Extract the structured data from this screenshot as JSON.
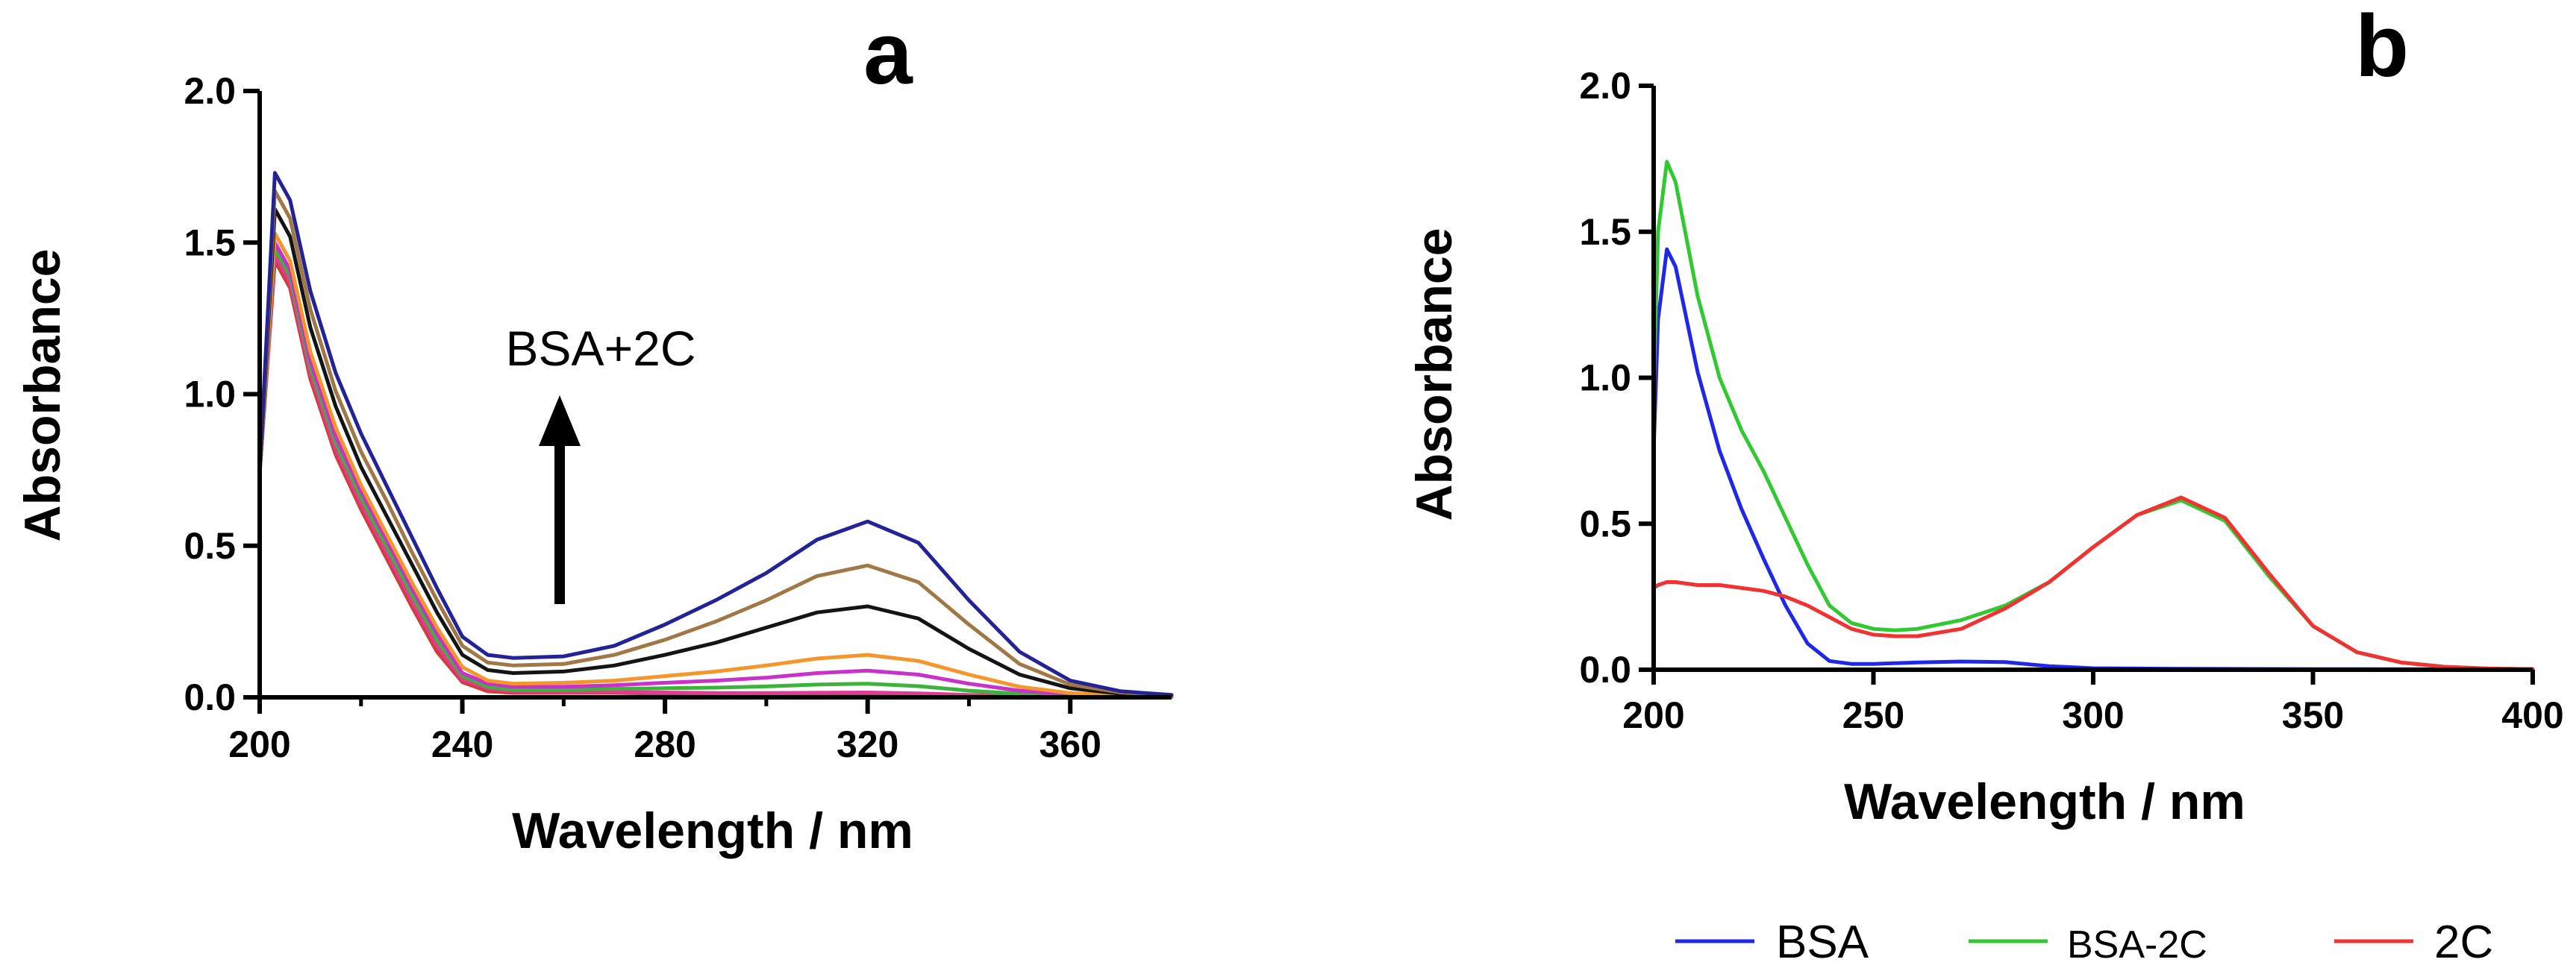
{
  "chart_data": [
    {
      "panel": "a",
      "type": "line",
      "xlabel": "Wavelength / nm",
      "ylabel": "Absorbance",
      "xlim": [
        200,
        380
      ],
      "ylim": [
        0,
        2.0
      ],
      "xticks": [
        200,
        240,
        280,
        320,
        360
      ],
      "yticks": [
        0.0,
        0.5,
        1.0,
        1.5,
        2.0
      ],
      "ytick_labels": [
        "0.0",
        "0.5",
        "1.0",
        "1.5",
        "2.0"
      ],
      "annotation": "BSA+2C",
      "annotation_arrow": "up",
      "grid": false,
      "series": [
        {
          "color": "#d43c3c",
          "x": [
            200,
            203,
            206,
            210,
            215,
            220,
            225,
            230,
            235,
            240,
            245,
            250,
            260,
            270,
            280,
            290,
            300,
            310,
            320,
            330,
            340,
            350,
            360,
            370,
            380
          ],
          "y": [
            0.74,
            1.44,
            1.35,
            1.05,
            0.8,
            0.62,
            0.46,
            0.3,
            0.15,
            0.05,
            0.02,
            0.015,
            0.015,
            0.015,
            0.012,
            0.01,
            0.01,
            0.01,
            0.01,
            0.008,
            0.005,
            0.004,
            0.003,
            0.002,
            0.001
          ]
        },
        {
          "color": "#e03c96",
          "x": [
            200,
            203,
            206,
            210,
            215,
            220,
            225,
            230,
            235,
            240,
            245,
            250,
            260,
            270,
            280,
            290,
            300,
            310,
            320,
            330,
            340,
            350,
            360,
            370,
            380
          ],
          "y": [
            0.74,
            1.46,
            1.37,
            1.07,
            0.82,
            0.64,
            0.48,
            0.32,
            0.17,
            0.06,
            0.03,
            0.02,
            0.018,
            0.018,
            0.016,
            0.014,
            0.014,
            0.015,
            0.016,
            0.013,
            0.008,
            0.006,
            0.004,
            0.003,
            0.002
          ]
        },
        {
          "color": "#3cb43c",
          "x": [
            200,
            203,
            206,
            210,
            215,
            220,
            225,
            230,
            235,
            240,
            245,
            250,
            260,
            270,
            280,
            290,
            300,
            310,
            320,
            330,
            340,
            350,
            360,
            370,
            380
          ],
          "y": [
            0.74,
            1.48,
            1.39,
            1.09,
            0.84,
            0.66,
            0.5,
            0.34,
            0.19,
            0.07,
            0.035,
            0.025,
            0.025,
            0.028,
            0.03,
            0.032,
            0.036,
            0.042,
            0.045,
            0.037,
            0.022,
            0.012,
            0.006,
            0.004,
            0.002
          ]
        },
        {
          "color": "#c832c8",
          "x": [
            200,
            203,
            206,
            210,
            215,
            220,
            225,
            230,
            235,
            240,
            245,
            250,
            260,
            270,
            280,
            290,
            300,
            310,
            320,
            330,
            340,
            350,
            360,
            370,
            380
          ],
          "y": [
            0.74,
            1.5,
            1.41,
            1.11,
            0.86,
            0.68,
            0.52,
            0.36,
            0.21,
            0.08,
            0.045,
            0.035,
            0.035,
            0.04,
            0.048,
            0.055,
            0.065,
            0.08,
            0.088,
            0.075,
            0.045,
            0.022,
            0.01,
            0.005,
            0.002
          ]
        },
        {
          "color": "#f5962d",
          "x": [
            200,
            203,
            206,
            210,
            215,
            220,
            225,
            230,
            235,
            240,
            245,
            250,
            260,
            270,
            280,
            290,
            300,
            310,
            320,
            330,
            340,
            350,
            360,
            370,
            380
          ],
          "y": [
            0.74,
            1.53,
            1.44,
            1.14,
            0.89,
            0.7,
            0.54,
            0.38,
            0.23,
            0.1,
            0.055,
            0.045,
            0.048,
            0.055,
            0.07,
            0.085,
            0.105,
            0.128,
            0.14,
            0.12,
            0.075,
            0.035,
            0.014,
            0.006,
            0.003
          ]
        },
        {
          "color": "#141414",
          "x": [
            200,
            203,
            206,
            210,
            215,
            220,
            225,
            230,
            235,
            240,
            245,
            250,
            260,
            270,
            280,
            290,
            300,
            310,
            320,
            330,
            340,
            350,
            360,
            370,
            380
          ],
          "y": [
            0.74,
            1.61,
            1.52,
            1.22,
            0.96,
            0.76,
            0.6,
            0.44,
            0.28,
            0.14,
            0.09,
            0.08,
            0.085,
            0.105,
            0.14,
            0.18,
            0.23,
            0.28,
            0.3,
            0.26,
            0.16,
            0.075,
            0.03,
            0.012,
            0.005
          ]
        },
        {
          "color": "#a07846",
          "x": [
            200,
            203,
            206,
            210,
            215,
            220,
            225,
            230,
            235,
            240,
            245,
            250,
            260,
            270,
            280,
            290,
            300,
            310,
            320,
            330,
            340,
            350,
            360,
            370,
            380
          ],
          "y": [
            0.74,
            1.67,
            1.58,
            1.28,
            1.01,
            0.81,
            0.65,
            0.48,
            0.32,
            0.17,
            0.115,
            0.105,
            0.11,
            0.14,
            0.19,
            0.25,
            0.32,
            0.4,
            0.435,
            0.38,
            0.24,
            0.11,
            0.042,
            0.016,
            0.006
          ]
        },
        {
          "color": "#232396",
          "x": [
            200,
            203,
            206,
            210,
            215,
            220,
            225,
            230,
            235,
            240,
            245,
            250,
            260,
            270,
            280,
            290,
            300,
            310,
            320,
            330,
            340,
            350,
            360,
            370,
            380
          ],
          "y": [
            0.74,
            1.73,
            1.64,
            1.34,
            1.07,
            0.87,
            0.7,
            0.53,
            0.36,
            0.2,
            0.14,
            0.13,
            0.135,
            0.17,
            0.24,
            0.32,
            0.41,
            0.52,
            0.58,
            0.51,
            0.32,
            0.15,
            0.055,
            0.02,
            0.008
          ]
        }
      ]
    },
    {
      "panel": "b",
      "type": "line",
      "xlabel": "Wavelength / nm",
      "ylabel": "Absorbance",
      "xlim": [
        200,
        400
      ],
      "ylim": [
        0,
        2.0
      ],
      "xticks": [
        200,
        250,
        300,
        350,
        400
      ],
      "yticks": [
        0.0,
        0.5,
        1.0,
        1.5,
        2.0
      ],
      "ytick_labels": [
        "0.0",
        "0.5",
        "1.0",
        "1.5",
        "2.0"
      ],
      "grid": false,
      "legend": "bottom",
      "series": [
        {
          "name": "BSA",
          "color": "#1e28e6",
          "x": [
            200,
            201,
            203,
            205,
            210,
            215,
            220,
            225,
            230,
            235,
            240,
            245,
            250,
            260,
            270,
            280,
            290,
            300,
            320,
            350,
            400
          ],
          "y": [
            0.75,
            1.2,
            1.44,
            1.38,
            1.02,
            0.75,
            0.55,
            0.38,
            0.22,
            0.09,
            0.03,
            0.02,
            0.02,
            0.025,
            0.028,
            0.026,
            0.012,
            0.005,
            0.003,
            0.002,
            0.001
          ]
        },
        {
          "name": "BSA-2C",
          "color": "#32c832",
          "x": [
            200,
            201,
            203,
            205,
            210,
            215,
            220,
            225,
            230,
            235,
            240,
            245,
            250,
            255,
            260,
            270,
            280,
            290,
            300,
            310,
            320,
            330,
            340,
            350,
            360,
            370,
            380,
            390,
            400
          ],
          "y": [
            0.95,
            1.5,
            1.74,
            1.67,
            1.28,
            1.0,
            0.82,
            0.68,
            0.52,
            0.36,
            0.22,
            0.16,
            0.14,
            0.135,
            0.14,
            0.17,
            0.22,
            0.3,
            0.42,
            0.53,
            0.58,
            0.51,
            0.32,
            0.15,
            0.06,
            0.025,
            0.01,
            0.004,
            0.002
          ]
        },
        {
          "name": "2C",
          "color": "#f03232",
          "x": [
            200,
            201,
            203,
            205,
            210,
            215,
            220,
            225,
            230,
            235,
            240,
            245,
            250,
            255,
            260,
            270,
            280,
            290,
            300,
            310,
            320,
            330,
            340,
            350,
            360,
            370,
            380,
            390,
            400
          ],
          "y": [
            0.28,
            0.29,
            0.3,
            0.3,
            0.29,
            0.29,
            0.28,
            0.27,
            0.25,
            0.22,
            0.18,
            0.14,
            0.12,
            0.115,
            0.115,
            0.14,
            0.21,
            0.3,
            0.42,
            0.53,
            0.59,
            0.52,
            0.33,
            0.15,
            0.06,
            0.025,
            0.01,
            0.004,
            0.002
          ]
        }
      ]
    }
  ]
}
